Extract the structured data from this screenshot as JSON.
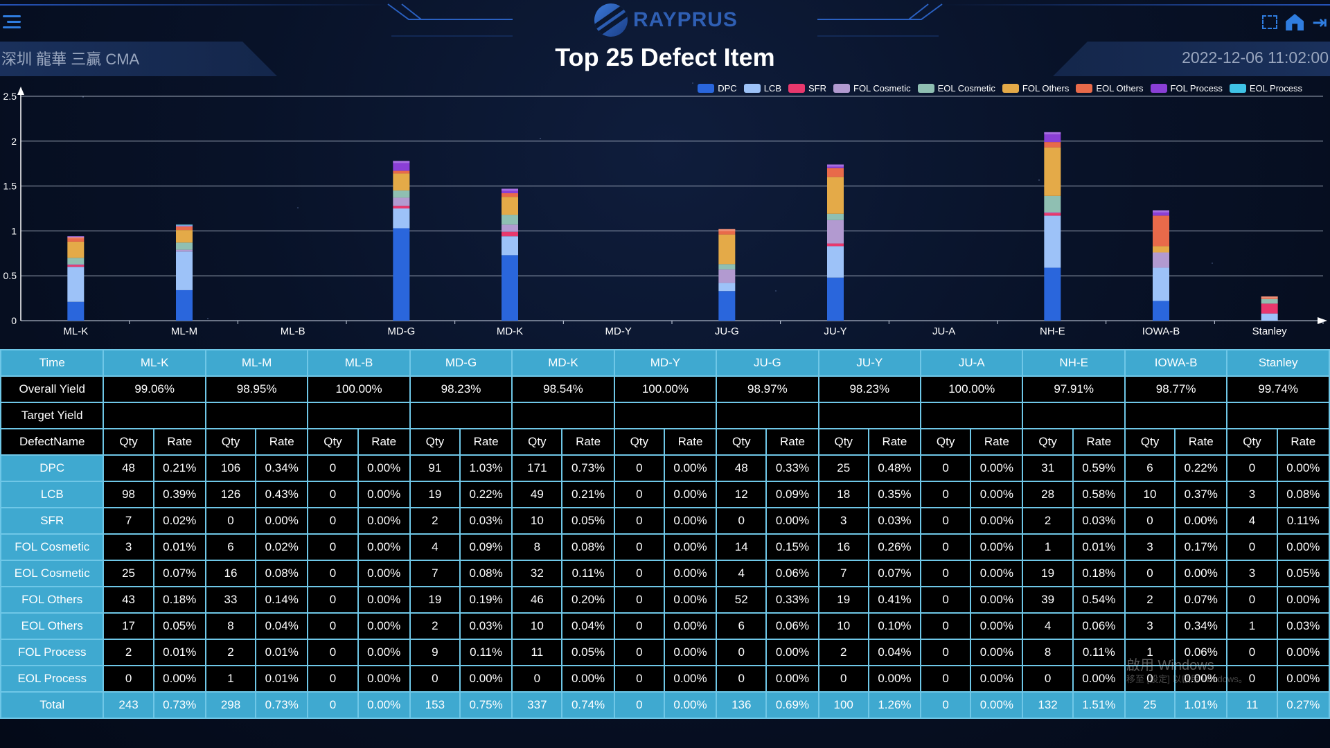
{
  "header": {
    "brand": "RAYPRUS",
    "site_label": "深圳 龍華 三贏 CMA",
    "title": "Top 25 Defect Item",
    "datetime": "2022-12-06 11:02:00"
  },
  "icons": [
    "menu-icon",
    "fullscreen-icon",
    "home-icon",
    "logout-icon"
  ],
  "chart_data": {
    "type": "bar",
    "stacked": true,
    "categories": [
      "ML-K",
      "ML-M",
      "ML-B",
      "MD-G",
      "MD-K",
      "MD-Y",
      "JU-G",
      "JU-Y",
      "JU-A",
      "NH-E",
      "IOWA-B",
      "Stanley"
    ],
    "ylim": [
      0,
      2.5
    ],
    "yticks": [
      0,
      0.5,
      1,
      1.5,
      2,
      2.5
    ],
    "legend_position": "top-right",
    "grid": true,
    "series": [
      {
        "name": "DPC",
        "color": "#2a66dc",
        "values": [
          0.21,
          0.34,
          0,
          1.03,
          0.73,
          0,
          0.33,
          0.48,
          0,
          0.59,
          0.22,
          0
        ]
      },
      {
        "name": "LCB",
        "color": "#9dc2f8",
        "values": [
          0.39,
          0.43,
          0,
          0.22,
          0.21,
          0,
          0.09,
          0.35,
          0,
          0.58,
          0.37,
          0.08
        ]
      },
      {
        "name": "SFR",
        "color": "#e8386d",
        "values": [
          0.02,
          0,
          0,
          0.03,
          0.05,
          0,
          0,
          0.03,
          0,
          0.03,
          0,
          0.11
        ]
      },
      {
        "name": "FOL Cosmetic",
        "color": "#b29ad0",
        "values": [
          0.01,
          0.02,
          0,
          0.09,
          0.08,
          0,
          0.15,
          0.26,
          0,
          0.01,
          0.17,
          0
        ]
      },
      {
        "name": "EOL Cosmetic",
        "color": "#8fbfb2",
        "values": [
          0.07,
          0.08,
          0,
          0.08,
          0.11,
          0,
          0.06,
          0.07,
          0,
          0.18,
          0,
          0.05
        ]
      },
      {
        "name": "FOL Others",
        "color": "#e4aa48",
        "values": [
          0.18,
          0.14,
          0,
          0.19,
          0.2,
          0,
          0.33,
          0.41,
          0,
          0.54,
          0.07,
          0
        ]
      },
      {
        "name": "EOL Others",
        "color": "#e86a4a",
        "values": [
          0.05,
          0.04,
          0,
          0.03,
          0.04,
          0,
          0.06,
          0.1,
          0,
          0.06,
          0.34,
          0.03
        ]
      },
      {
        "name": "FOL Process",
        "color": "#8a3fd6",
        "values": [
          0.01,
          0.01,
          0,
          0.11,
          0.05,
          0,
          0,
          0.04,
          0,
          0.11,
          0.06,
          0
        ]
      },
      {
        "name": "EOL Process",
        "color": "#3fc3e6",
        "values": [
          0,
          0.01,
          0,
          0,
          0,
          0,
          0,
          0,
          0,
          0,
          0,
          0
        ]
      }
    ]
  },
  "table": {
    "time_label": "Time",
    "yield_label": "Overall Yield",
    "target_label": "Target Yield",
    "defect_label": "DefectName",
    "qty_label": "Qty",
    "rate_label": "Rate",
    "total_label": "Total",
    "sites": [
      "ML-K",
      "ML-M",
      "ML-B",
      "MD-G",
      "MD-K",
      "MD-Y",
      "JU-G",
      "JU-Y",
      "JU-A",
      "NH-E",
      "IOWA-B",
      "Stanley"
    ],
    "overall_yield": [
      "99.06%",
      "98.95%",
      "100.00%",
      "98.23%",
      "98.54%",
      "100.00%",
      "98.97%",
      "98.23%",
      "100.00%",
      "97.91%",
      "98.77%",
      "99.74%"
    ],
    "rows": [
      {
        "name": "DPC",
        "cells": [
          [
            "48",
            "0.21%"
          ],
          [
            "106",
            "0.34%"
          ],
          [
            "0",
            "0.00%"
          ],
          [
            "91",
            "1.03%"
          ],
          [
            "171",
            "0.73%"
          ],
          [
            "0",
            "0.00%"
          ],
          [
            "48",
            "0.33%"
          ],
          [
            "25",
            "0.48%"
          ],
          [
            "0",
            "0.00%"
          ],
          [
            "31",
            "0.59%"
          ],
          [
            "6",
            "0.22%"
          ],
          [
            "0",
            "0.00%"
          ]
        ]
      },
      {
        "name": "LCB",
        "cells": [
          [
            "98",
            "0.39%"
          ],
          [
            "126",
            "0.43%"
          ],
          [
            "0",
            "0.00%"
          ],
          [
            "19",
            "0.22%"
          ],
          [
            "49",
            "0.21%"
          ],
          [
            "0",
            "0.00%"
          ],
          [
            "12",
            "0.09%"
          ],
          [
            "18",
            "0.35%"
          ],
          [
            "0",
            "0.00%"
          ],
          [
            "28",
            "0.58%"
          ],
          [
            "10",
            "0.37%"
          ],
          [
            "3",
            "0.08%"
          ]
        ]
      },
      {
        "name": "SFR",
        "cells": [
          [
            "7",
            "0.02%"
          ],
          [
            "0",
            "0.00%"
          ],
          [
            "0",
            "0.00%"
          ],
          [
            "2",
            "0.03%"
          ],
          [
            "10",
            "0.05%"
          ],
          [
            "0",
            "0.00%"
          ],
          [
            "0",
            "0.00%"
          ],
          [
            "3",
            "0.03%"
          ],
          [
            "0",
            "0.00%"
          ],
          [
            "2",
            "0.03%"
          ],
          [
            "0",
            "0.00%"
          ],
          [
            "4",
            "0.11%"
          ]
        ]
      },
      {
        "name": "FOL Cosmetic",
        "cells": [
          [
            "3",
            "0.01%"
          ],
          [
            "6",
            "0.02%"
          ],
          [
            "0",
            "0.00%"
          ],
          [
            "4",
            "0.09%"
          ],
          [
            "8",
            "0.08%"
          ],
          [
            "0",
            "0.00%"
          ],
          [
            "14",
            "0.15%"
          ],
          [
            "16",
            "0.26%"
          ],
          [
            "0",
            "0.00%"
          ],
          [
            "1",
            "0.01%"
          ],
          [
            "3",
            "0.17%"
          ],
          [
            "0",
            "0.00%"
          ]
        ]
      },
      {
        "name": "EOL Cosmetic",
        "cells": [
          [
            "25",
            "0.07%"
          ],
          [
            "16",
            "0.08%"
          ],
          [
            "0",
            "0.00%"
          ],
          [
            "7",
            "0.08%"
          ],
          [
            "32",
            "0.11%"
          ],
          [
            "0",
            "0.00%"
          ],
          [
            "4",
            "0.06%"
          ],
          [
            "7",
            "0.07%"
          ],
          [
            "0",
            "0.00%"
          ],
          [
            "19",
            "0.18%"
          ],
          [
            "0",
            "0.00%"
          ],
          [
            "3",
            "0.05%"
          ]
        ]
      },
      {
        "name": "FOL Others",
        "cells": [
          [
            "43",
            "0.18%"
          ],
          [
            "33",
            "0.14%"
          ],
          [
            "0",
            "0.00%"
          ],
          [
            "19",
            "0.19%"
          ],
          [
            "46",
            "0.20%"
          ],
          [
            "0",
            "0.00%"
          ],
          [
            "52",
            "0.33%"
          ],
          [
            "19",
            "0.41%"
          ],
          [
            "0",
            "0.00%"
          ],
          [
            "39",
            "0.54%"
          ],
          [
            "2",
            "0.07%"
          ],
          [
            "0",
            "0.00%"
          ]
        ]
      },
      {
        "name": "EOL Others",
        "cells": [
          [
            "17",
            "0.05%"
          ],
          [
            "8",
            "0.04%"
          ],
          [
            "0",
            "0.00%"
          ],
          [
            "2",
            "0.03%"
          ],
          [
            "10",
            "0.04%"
          ],
          [
            "0",
            "0.00%"
          ],
          [
            "6",
            "0.06%"
          ],
          [
            "10",
            "0.10%"
          ],
          [
            "0",
            "0.00%"
          ],
          [
            "4",
            "0.06%"
          ],
          [
            "3",
            "0.34%"
          ],
          [
            "1",
            "0.03%"
          ]
        ]
      },
      {
        "name": "FOL Process",
        "cells": [
          [
            "2",
            "0.01%"
          ],
          [
            "2",
            "0.01%"
          ],
          [
            "0",
            "0.00%"
          ],
          [
            "9",
            "0.11%"
          ],
          [
            "11",
            "0.05%"
          ],
          [
            "0",
            "0.00%"
          ],
          [
            "0",
            "0.00%"
          ],
          [
            "2",
            "0.04%"
          ],
          [
            "0",
            "0.00%"
          ],
          [
            "8",
            "0.11%"
          ],
          [
            "1",
            "0.06%"
          ],
          [
            "0",
            "0.00%"
          ]
        ]
      },
      {
        "name": "EOL Process",
        "cells": [
          [
            "0",
            "0.00%"
          ],
          [
            "1",
            "0.01%"
          ],
          [
            "0",
            "0.00%"
          ],
          [
            "0",
            "0.00%"
          ],
          [
            "0",
            "0.00%"
          ],
          [
            "0",
            "0.00%"
          ],
          [
            "0",
            "0.00%"
          ],
          [
            "0",
            "0.00%"
          ],
          [
            "0",
            "0.00%"
          ],
          [
            "0",
            "0.00%"
          ],
          [
            "0",
            "0.00%"
          ],
          [
            "0",
            "0.00%"
          ]
        ]
      }
    ],
    "total": [
      [
        "243",
        "0.73%"
      ],
      [
        "298",
        "0.73%"
      ],
      [
        "0",
        "0.00%"
      ],
      [
        "153",
        "0.75%"
      ],
      [
        "337",
        "0.74%"
      ],
      [
        "0",
        "0.00%"
      ],
      [
        "136",
        "0.69%"
      ],
      [
        "100",
        "1.26%"
      ],
      [
        "0",
        "0.00%"
      ],
      [
        "132",
        "1.51%"
      ],
      [
        "25",
        "1.01%"
      ],
      [
        "11",
        "0.27%"
      ]
    ]
  },
  "watermark": {
    "line1": "啟用 Windows",
    "line2": "移至 [設定] 以啟用 Windows。"
  }
}
